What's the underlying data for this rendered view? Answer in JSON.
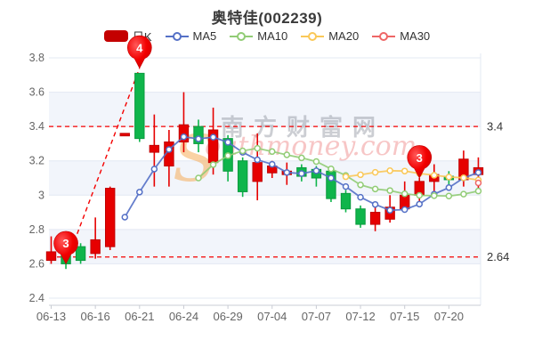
{
  "title": "奥特佳(002239)",
  "legend": [
    {
      "label": "日K",
      "type": "candle",
      "color": "#c40000"
    },
    {
      "label": "MA5",
      "type": "line",
      "color": "#5470c6"
    },
    {
      "label": "MA10",
      "type": "line",
      "color": "#91cc75"
    },
    {
      "label": "MA20",
      "type": "line",
      "color": "#fac858"
    },
    {
      "label": "MA30",
      "type": "line",
      "color": "#ee6666"
    }
  ],
  "watermark": {
    "cn": "南方财富网",
    "en_big": "S",
    "en_rest": "outhmoney.com"
  },
  "y_axis": {
    "tick_labels": [
      "3.8",
      "3.6",
      "3.4",
      "3.2",
      "3",
      "2.8",
      "2.6",
      "2.4"
    ],
    "min": 2.4,
    "max": 3.8
  },
  "x_axis": {
    "tick_indices": [
      0,
      3,
      6,
      9,
      12,
      15,
      18,
      21,
      24,
      27
    ],
    "tick_labels": [
      "06-13",
      "06-16",
      "06-21",
      "06-24",
      "06-29",
      "07-04",
      "07-07",
      "07-12",
      "07-15",
      "07-20"
    ]
  },
  "chart_data": {
    "type": "candlestick",
    "title": "奥特佳(002239)",
    "ylim": [
      2.4,
      3.8
    ],
    "grid": true,
    "dates": [
      "06-13",
      "06-14",
      "06-15",
      "06-16",
      "06-17",
      "06-20",
      "06-21",
      "06-22",
      "06-23",
      "06-24",
      "06-27",
      "06-28",
      "06-29",
      "06-30",
      "07-01",
      "07-04",
      "07-05",
      "07-06",
      "07-07",
      "07-08",
      "07-11",
      "07-12",
      "07-13",
      "07-14",
      "07-15",
      "07-18",
      "07-19",
      "07-20",
      "07-21",
      "07-22"
    ],
    "ohlc_order": "open,high,low,close",
    "ohlc": [
      [
        2.62,
        2.76,
        2.6,
        2.67
      ],
      [
        2.67,
        2.68,
        2.57,
        2.6
      ],
      [
        2.7,
        2.72,
        2.6,
        2.62
      ],
      [
        2.66,
        2.87,
        2.63,
        2.74
      ],
      [
        2.7,
        3.05,
        2.68,
        3.04
      ],
      [
        3.36,
        3.36,
        3.36,
        3.36
      ],
      [
        3.71,
        3.71,
        3.31,
        3.33
      ],
      [
        3.25,
        3.47,
        3.05,
        3.29
      ],
      [
        3.17,
        3.38,
        3.05,
        3.31
      ],
      [
        3.31,
        3.6,
        3.25,
        3.41
      ],
      [
        3.4,
        3.44,
        3.25,
        3.3
      ],
      [
        3.19,
        3.51,
        3.12,
        3.38
      ],
      [
        3.33,
        3.35,
        3.08,
        3.14
      ],
      [
        3.2,
        3.22,
        2.99,
        3.02
      ],
      [
        3.08,
        3.36,
        2.97,
        3.19
      ],
      [
        3.13,
        3.2,
        3.1,
        3.17
      ],
      [
        3.12,
        3.19,
        3.06,
        3.14
      ],
      [
        3.16,
        3.18,
        3.08,
        3.11
      ],
      [
        3.15,
        3.17,
        3.05,
        3.1
      ],
      [
        3.14,
        3.15,
        2.96,
        2.98
      ],
      [
        3.01,
        3.03,
        2.9,
        2.92
      ],
      [
        2.92,
        2.94,
        2.81,
        2.83
      ],
      [
        2.83,
        2.95,
        2.79,
        2.9
      ],
      [
        2.86,
        3.0,
        2.84,
        2.93
      ],
      [
        2.92,
        3.08,
        2.9,
        3.0
      ],
      [
        3.0,
        3.1,
        2.95,
        3.08
      ],
      [
        3.08,
        3.18,
        3.01,
        3.12
      ],
      [
        3.11,
        3.14,
        3.06,
        3.09
      ],
      [
        3.09,
        3.26,
        3.05,
        3.21
      ],
      [
        3.12,
        3.22,
        3.04,
        3.16
      ]
    ],
    "ma_series": [
      {
        "name": "MA5",
        "period": 5,
        "color": "#5470c6",
        "start_index": 5
      },
      {
        "name": "MA10",
        "period": 10,
        "color": "#91cc75",
        "start_index": 10
      },
      {
        "name": "MA20",
        "period": 20,
        "color": "#fac858",
        "start_index": 20
      },
      {
        "name": "MA30",
        "period": 30,
        "color": "#ee6666",
        "start_index": 29
      }
    ],
    "ref_lines": [
      {
        "value": 3.4,
        "label": "3.4"
      },
      {
        "value": 2.64,
        "label": "2.64"
      }
    ],
    "balloons": [
      {
        "index": 1,
        "value": 2.6,
        "label": "3"
      },
      {
        "index": 6,
        "value": 3.74,
        "label": "4"
      },
      {
        "index": 25,
        "value": 3.1,
        "label": "3"
      }
    ],
    "trend_line": {
      "from_balloon": 0,
      "to_balloon": 1
    },
    "colors": {
      "up": "#e60000",
      "up_border": "#c00000",
      "down": "#0fb54b",
      "down_border": "#0a9a3e",
      "band": "#f2f5fb",
      "grid": "#e3e8f3",
      "ref": "#f40000",
      "axis": "#c9ccd4",
      "tick_text": "#666666",
      "ref_label": "#333333",
      "balloon": "#ee0000"
    }
  }
}
